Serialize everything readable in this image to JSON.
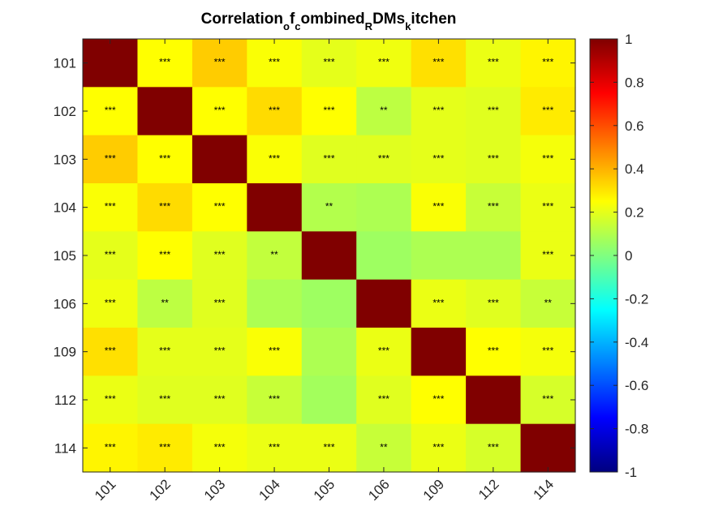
{
  "chart_data": {
    "type": "heatmap",
    "title": "Correlation_of_combined_RDMs_kitchen",
    "title_display": [
      {
        "text": "Correlation",
        "sub": false
      },
      {
        "text": "o",
        "sub": true
      },
      {
        "text": "f",
        "sub": false
      },
      {
        "text": "c",
        "sub": true
      },
      {
        "text": "ombined",
        "sub": false
      },
      {
        "text": "R",
        "sub": true
      },
      {
        "text": "DMs",
        "sub": false
      },
      {
        "text": "k",
        "sub": true
      },
      {
        "text": "itchen",
        "sub": false
      }
    ],
    "rows": [
      "101",
      "102",
      "103",
      "104",
      "105",
      "106",
      "109",
      "112",
      "114"
    ],
    "columns": [
      "101",
      "102",
      "103",
      "104",
      "105",
      "106",
      "109",
      "112",
      "114"
    ],
    "values": [
      [
        1.0,
        0.25,
        0.35,
        0.24,
        0.2,
        0.22,
        0.31,
        0.21,
        0.27
      ],
      [
        0.25,
        1.0,
        0.25,
        0.32,
        0.25,
        0.12,
        0.2,
        0.19,
        0.29
      ],
      [
        0.35,
        0.25,
        1.0,
        0.24,
        0.19,
        0.19,
        0.2,
        0.19,
        0.23
      ],
      [
        0.24,
        0.32,
        0.25,
        1.0,
        0.1,
        0.09,
        0.24,
        0.14,
        0.21
      ],
      [
        0.2,
        0.25,
        0.19,
        0.13,
        1.0,
        0.06,
        0.09,
        0.09,
        0.21
      ],
      [
        0.22,
        0.12,
        0.19,
        0.09,
        0.06,
        1.0,
        0.21,
        0.19,
        0.14
      ],
      [
        0.31,
        0.2,
        0.2,
        0.24,
        0.09,
        0.21,
        1.0,
        0.25,
        0.23
      ],
      [
        0.21,
        0.19,
        0.19,
        0.14,
        0.07,
        0.19,
        0.25,
        1.0,
        0.17
      ],
      [
        0.27,
        0.29,
        0.23,
        0.21,
        0.21,
        0.14,
        0.21,
        0.17,
        1.0
      ]
    ],
    "significance": [
      [
        "",
        "***",
        "***",
        "***",
        "***",
        "***",
        "***",
        "***",
        "***"
      ],
      [
        "***",
        "",
        "***",
        "***",
        "***",
        "**",
        "***",
        "***",
        "***"
      ],
      [
        "***",
        "***",
        "",
        "***",
        "***",
        "***",
        "***",
        "***",
        "***"
      ],
      [
        "***",
        "***",
        "***",
        "",
        "**",
        "",
        "***",
        "***",
        "***"
      ],
      [
        "***",
        "***",
        "***",
        "**",
        "",
        "",
        "",
        "",
        "***"
      ],
      [
        "***",
        "**",
        "***",
        "",
        "",
        "",
        "***",
        "***",
        "**"
      ],
      [
        "***",
        "***",
        "***",
        "***",
        "",
        "***",
        "",
        "***",
        "***"
      ],
      [
        "***",
        "***",
        "***",
        "***",
        "",
        "***",
        "***",
        "",
        "***"
      ],
      [
        "***",
        "***",
        "***",
        "***",
        "***",
        "**",
        "***",
        "***",
        ""
      ]
    ],
    "colorbar": {
      "colormap": "jet",
      "range": [
        -1,
        1
      ],
      "ticks": [
        "1",
        "0.8",
        "0.6",
        "0.4",
        "0.2",
        "0",
        "-0.2",
        "-0.4",
        "-0.6",
        "-0.8",
        "-1"
      ]
    },
    "xlabel": "",
    "ylabel": ""
  }
}
